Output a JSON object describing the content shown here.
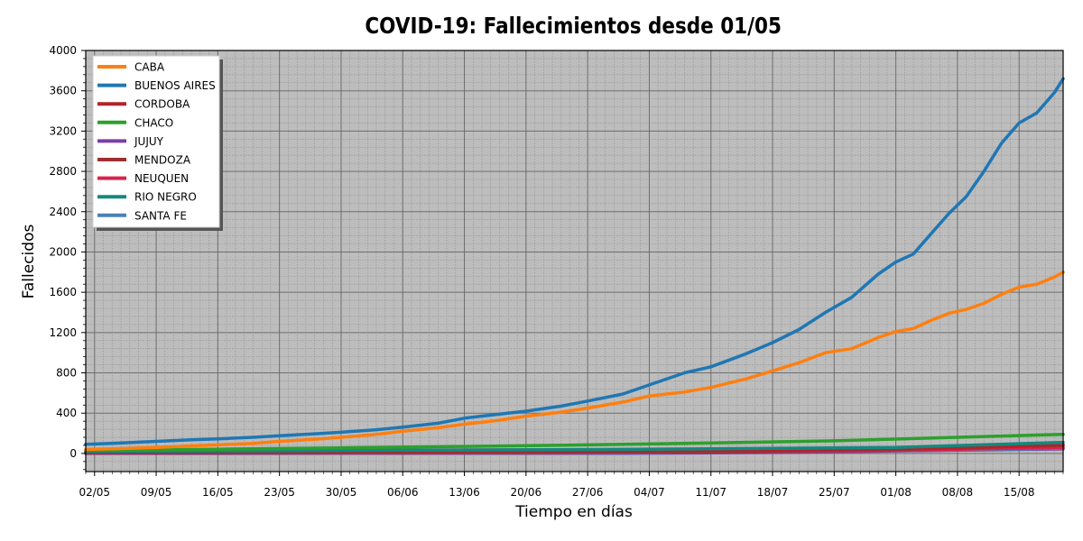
{
  "chart_data": {
    "type": "line",
    "title": "COVID-19: Fallecimientos desde 01/05",
    "xlabel": "Tiempo en días",
    "ylabel": "Fallecidos",
    "ylim": [
      -180,
      4000
    ],
    "yticks": [
      0,
      400,
      800,
      1200,
      1600,
      2000,
      2400,
      2800,
      3200,
      3600,
      4000
    ],
    "x_start_date": "2020-05-01",
    "x_end_date": "2020-08-20",
    "xticks": [
      "02/05",
      "09/05",
      "16/05",
      "23/05",
      "30/05",
      "06/06",
      "13/06",
      "20/06",
      "27/06",
      "04/07",
      "11/07",
      "18/07",
      "25/07",
      "01/08",
      "08/08",
      "15/08"
    ],
    "xtick_dates": [
      "2020-05-02",
      "2020-05-09",
      "2020-05-16",
      "2020-05-23",
      "2020-05-30",
      "2020-06-06",
      "2020-06-13",
      "2020-06-20",
      "2020-06-27",
      "2020-07-04",
      "2020-07-11",
      "2020-07-18",
      "2020-07-25",
      "2020-08-01",
      "2020-08-08",
      "2020-08-15"
    ],
    "grid": true,
    "legend_position": "top-left",
    "background_color": "#bdbdbd",
    "series": [
      {
        "name": "CABA",
        "color": "#ff7f0e",
        "points": [
          [
            "2020-05-01",
            40
          ],
          [
            "2020-05-05",
            48
          ],
          [
            "2020-05-09",
            60
          ],
          [
            "2020-05-13",
            75
          ],
          [
            "2020-05-16",
            85
          ],
          [
            "2020-05-20",
            100
          ],
          [
            "2020-05-23",
            120
          ],
          [
            "2020-05-27",
            140
          ],
          [
            "2020-05-30",
            160
          ],
          [
            "2020-06-03",
            190
          ],
          [
            "2020-06-06",
            220
          ],
          [
            "2020-06-10",
            255
          ],
          [
            "2020-06-13",
            290
          ],
          [
            "2020-06-17",
            330
          ],
          [
            "2020-06-20",
            370
          ],
          [
            "2020-06-24",
            410
          ],
          [
            "2020-06-27",
            450
          ],
          [
            "2020-07-01",
            510
          ],
          [
            "2020-07-04",
            570
          ],
          [
            "2020-07-08",
            610
          ],
          [
            "2020-07-11",
            655
          ],
          [
            "2020-07-15",
            740
          ],
          [
            "2020-07-18",
            820
          ],
          [
            "2020-07-21",
            900
          ],
          [
            "2020-07-24",
            1000
          ],
          [
            "2020-07-27",
            1040
          ],
          [
            "2020-07-30",
            1150
          ],
          [
            "2020-08-01",
            1210
          ],
          [
            "2020-08-03",
            1240
          ],
          [
            "2020-08-05",
            1320
          ],
          [
            "2020-08-07",
            1390
          ],
          [
            "2020-08-09",
            1430
          ],
          [
            "2020-08-11",
            1490
          ],
          [
            "2020-08-13",
            1580
          ],
          [
            "2020-08-15",
            1650
          ],
          [
            "2020-08-17",
            1680
          ],
          [
            "2020-08-19",
            1750
          ],
          [
            "2020-08-20",
            1800
          ]
        ]
      },
      {
        "name": "BUENOS AIRES",
        "color": "#1f77b4",
        "points": [
          [
            "2020-05-01",
            90
          ],
          [
            "2020-05-05",
            105
          ],
          [
            "2020-05-09",
            120
          ],
          [
            "2020-05-13",
            135
          ],
          [
            "2020-05-16",
            145
          ],
          [
            "2020-05-20",
            160
          ],
          [
            "2020-05-23",
            175
          ],
          [
            "2020-05-27",
            195
          ],
          [
            "2020-05-30",
            210
          ],
          [
            "2020-06-03",
            235
          ],
          [
            "2020-06-06",
            260
          ],
          [
            "2020-06-10",
            300
          ],
          [
            "2020-06-13",
            350
          ],
          [
            "2020-06-17",
            390
          ],
          [
            "2020-06-20",
            420
          ],
          [
            "2020-06-24",
            470
          ],
          [
            "2020-06-27",
            520
          ],
          [
            "2020-07-01",
            590
          ],
          [
            "2020-07-04",
            680
          ],
          [
            "2020-07-08",
            800
          ],
          [
            "2020-07-11",
            860
          ],
          [
            "2020-07-15",
            990
          ],
          [
            "2020-07-18",
            1100
          ],
          [
            "2020-07-21",
            1230
          ],
          [
            "2020-07-24",
            1400
          ],
          [
            "2020-07-27",
            1550
          ],
          [
            "2020-07-30",
            1780
          ],
          [
            "2020-08-01",
            1900
          ],
          [
            "2020-08-03",
            1980
          ],
          [
            "2020-08-05",
            2180
          ],
          [
            "2020-08-07",
            2380
          ],
          [
            "2020-08-09",
            2550
          ],
          [
            "2020-08-11",
            2800
          ],
          [
            "2020-08-13",
            3080
          ],
          [
            "2020-08-15",
            3280
          ],
          [
            "2020-08-17",
            3380
          ],
          [
            "2020-08-19",
            3580
          ],
          [
            "2020-08-20",
            3720
          ]
        ]
      },
      {
        "name": "CORDOBA",
        "color": "#b2242a",
        "points": [
          [
            "2020-05-01",
            30
          ],
          [
            "2020-06-01",
            32
          ],
          [
            "2020-07-01",
            35
          ],
          [
            "2020-07-20",
            40
          ],
          [
            "2020-08-01",
            48
          ],
          [
            "2020-08-10",
            60
          ],
          [
            "2020-08-20",
            85
          ]
        ]
      },
      {
        "name": "CHACO",
        "color": "#2ca02c",
        "points": [
          [
            "2020-05-01",
            30
          ],
          [
            "2020-05-16",
            42
          ],
          [
            "2020-05-30",
            55
          ],
          [
            "2020-06-13",
            70
          ],
          [
            "2020-06-27",
            85
          ],
          [
            "2020-07-11",
            105
          ],
          [
            "2020-07-25",
            125
          ],
          [
            "2020-08-08",
            160
          ],
          [
            "2020-08-20",
            190
          ]
        ]
      },
      {
        "name": "JUJUY",
        "color": "#7b3fa8",
        "points": [
          [
            "2020-05-01",
            0
          ],
          [
            "2020-07-01",
            2
          ],
          [
            "2020-07-20",
            10
          ],
          [
            "2020-08-01",
            25
          ],
          [
            "2020-08-20",
            45
          ]
        ]
      },
      {
        "name": "MENDOZA",
        "color": "#9e2f2f",
        "points": [
          [
            "2020-05-01",
            8
          ],
          [
            "2020-06-15",
            10
          ],
          [
            "2020-07-15",
            18
          ],
          [
            "2020-08-01",
            40
          ],
          [
            "2020-08-20",
            80
          ]
        ]
      },
      {
        "name": "NEUQUEN",
        "color": "#d9234b",
        "points": [
          [
            "2020-05-01",
            5
          ],
          [
            "2020-06-15",
            10
          ],
          [
            "2020-07-15",
            20
          ],
          [
            "2020-08-01",
            30
          ],
          [
            "2020-08-20",
            60
          ]
        ]
      },
      {
        "name": "RIO NEGRO",
        "color": "#14897f",
        "points": [
          [
            "2020-05-01",
            20
          ],
          [
            "2020-06-01",
            30
          ],
          [
            "2020-07-01",
            40
          ],
          [
            "2020-08-01",
            60
          ],
          [
            "2020-08-20",
            110
          ]
        ]
      },
      {
        "name": "SANTA FE",
        "color": "#4a80b8",
        "points": [
          [
            "2020-05-01",
            5
          ],
          [
            "2020-06-01",
            6
          ],
          [
            "2020-07-01",
            10
          ],
          [
            "2020-08-01",
            30
          ],
          [
            "2020-08-20",
            50
          ]
        ]
      }
    ]
  }
}
